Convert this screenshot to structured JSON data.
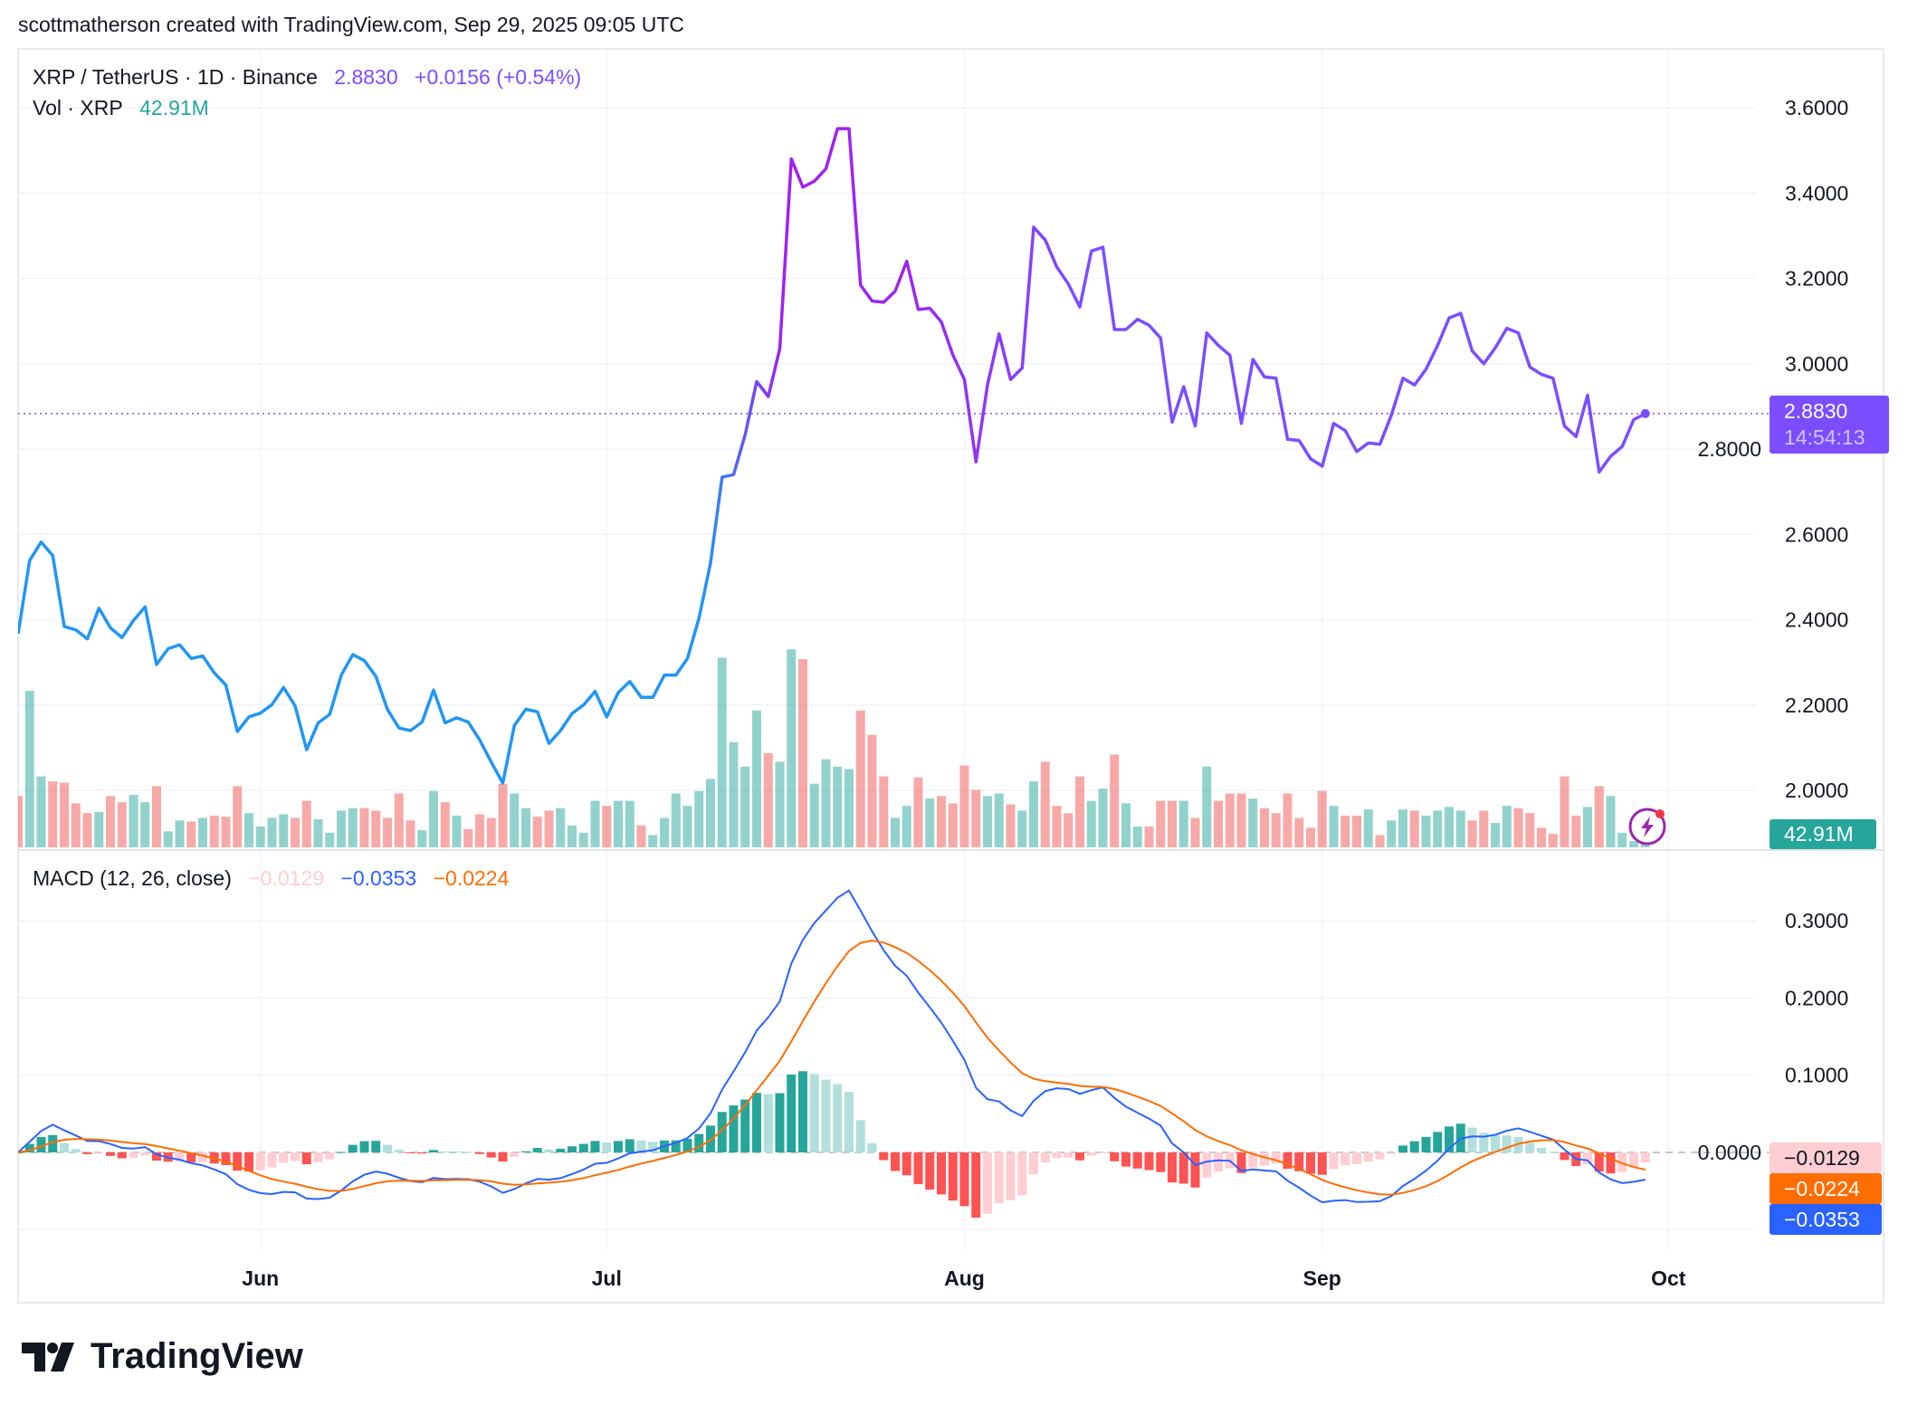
{
  "header": {
    "attribution": "scottmatherson created with TradingView.com, Sep 29, 2025 09:05 UTC"
  },
  "legend": {
    "symbol": "XRP / TetherUS · 1D · Binance",
    "price": "2.8830",
    "change": "+0.0156 (+0.54%)",
    "vol_label": "Vol · XRP",
    "vol_value": "42.91M",
    "macd_label": "MACD (12, 26, close)",
    "macd_hist": "−0.0129",
    "macd_line": "−0.0353",
    "macd_signal": "−0.0224"
  },
  "badges": {
    "price": "2.8830",
    "countdown": "14:54:13",
    "volume": "42.91M",
    "hist": "−0.0129",
    "signal": "−0.0224",
    "macd": "−0.0353"
  },
  "colors": {
    "price_blue": "#2196f3",
    "price_purple": "#7c4dff",
    "price_magenta": "#a020f0",
    "up": "#26a69a",
    "down": "#ef5350",
    "macd": "#2962ff",
    "signal": "#ff6d00",
    "hist_up_strong": "#26a69a",
    "hist_up_weak": "#b2dfdb",
    "hist_down_strong": "#ff5252",
    "hist_down_weak": "#ffcdd2"
  },
  "footer": {
    "brand": "TradingView"
  },
  "chart_data": {
    "type": "line",
    "title": "XRP / TetherUS · 1D · Binance",
    "x_start": "2025-05-11",
    "x_interval": "1D",
    "xticks": [
      {
        "label": "Jun",
        "day": 21
      },
      {
        "label": "Jul",
        "day": 51
      },
      {
        "label": "Aug",
        "day": 82
      },
      {
        "label": "Sep",
        "day": 113
      },
      {
        "label": "Oct",
        "day": 143
      }
    ],
    "price_ticks": [
      "3.6000",
      "3.4000",
      "3.2000",
      "3.0000",
      "2.8000",
      "2.6000",
      "2.4000",
      "2.2000",
      "2.0000"
    ],
    "macd_ticks": [
      "0.3000",
      "0.2000",
      "0.1000",
      "0.0000"
    ],
    "ylim_price": [
      1.87,
      3.7
    ],
    "ylim_macd": [
      -0.11,
      0.38
    ],
    "last_price": 2.883,
    "series": [
      {
        "name": "close",
        "values": [
          2.367,
          2.539,
          2.582,
          2.55,
          2.384,
          2.376,
          2.355,
          2.427,
          2.381,
          2.358,
          2.398,
          2.43,
          2.295,
          2.332,
          2.341,
          2.309,
          2.315,
          2.275,
          2.247,
          2.138,
          2.172,
          2.181,
          2.201,
          2.241,
          2.198,
          2.095,
          2.158,
          2.178,
          2.27,
          2.318,
          2.304,
          2.267,
          2.19,
          2.146,
          2.14,
          2.16,
          2.235,
          2.158,
          2.17,
          2.16,
          2.118,
          2.066,
          2.017,
          2.152,
          2.19,
          2.184,
          2.11,
          2.14,
          2.18,
          2.2,
          2.232,
          2.172,
          2.229,
          2.255,
          2.218,
          2.218,
          2.27,
          2.27,
          2.309,
          2.404,
          2.533,
          2.734,
          2.74,
          2.834,
          2.958,
          2.923,
          3.035,
          3.48,
          3.414,
          3.428,
          3.457,
          3.551,
          3.551,
          3.184,
          3.147,
          3.144,
          3.17,
          3.24,
          3.127,
          3.13,
          3.098,
          3.02,
          2.963,
          2.77,
          2.95,
          3.07,
          2.963,
          2.99,
          3.32,
          3.29,
          3.227,
          3.187,
          3.133,
          3.264,
          3.273,
          3.08,
          3.08,
          3.104,
          3.09,
          3.06,
          2.863,
          2.946,
          2.854,
          3.072,
          3.043,
          3.02,
          2.86,
          3.01,
          2.969,
          2.966,
          2.823,
          2.82,
          2.777,
          2.76,
          2.86,
          2.843,
          2.794,
          2.814,
          2.811,
          2.88,
          2.966,
          2.95,
          2.987,
          3.043,
          3.107,
          3.118,
          3.03,
          3.0,
          3.037,
          3.083,
          3.072,
          2.992,
          2.975,
          2.966,
          2.854,
          2.829,
          2.926,
          2.746,
          2.783,
          2.806,
          2.869,
          2.883
        ]
      },
      {
        "name": "volume_M",
        "values": [
          225,
          686,
          311,
          289,
          284,
          193,
          150,
          155,
          225,
          198,
          230,
          198,
          268,
          70,
          118,
          113,
          129,
          139,
          134,
          268,
          150,
          91,
          129,
          145,
          129,
          204,
          123,
          64,
          161,
          172,
          172,
          161,
          129,
          236,
          118,
          75,
          247,
          198,
          139,
          80,
          145,
          129,
          279,
          236,
          172,
          134,
          161,
          172,
          96,
          64,
          204,
          182,
          204,
          204,
          96,
          54,
          129,
          236,
          182,
          247,
          300,
          831,
          461,
          354,
          600,
          413,
          375,
          868,
          825,
          279,
          386,
          354,
          343,
          600,
          493,
          311,
          129,
          182,
          306,
          214,
          225,
          193,
          359,
          252,
          225,
          236,
          188,
          161,
          289,
          375,
          182,
          150,
          311,
          204,
          257,
          407,
          193,
          91,
          91,
          204,
          204,
          204,
          129,
          354,
          204,
          236,
          236,
          214,
          172,
          150,
          236,
          129,
          86,
          247,
          182,
          139,
          139,
          166,
          54,
          118,
          166,
          161,
          139,
          161,
          177,
          161,
          118,
          161,
          107,
          182,
          172,
          150,
          86,
          59,
          311,
          139,
          177,
          268,
          225,
          64,
          27,
          43
        ]
      }
    ]
  }
}
